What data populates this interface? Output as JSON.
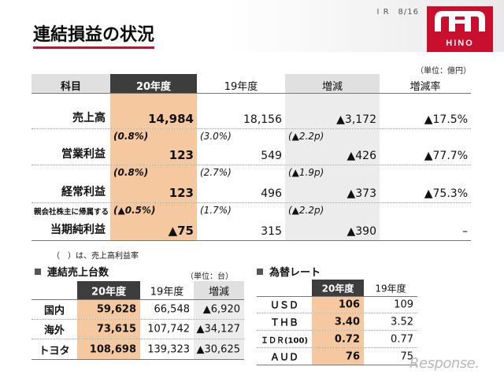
{
  "header": {
    "page_info": "I R　8/16",
    "title": "連結損益の状況",
    "logo_text": "HINO"
  },
  "main_table": {
    "unit": "（単位：億円）",
    "columns": [
      "科目",
      "20年度",
      "19年度",
      "増減",
      "増減率"
    ],
    "rows": [
      {
        "label": "売上高",
        "sublabel": "",
        "r20": "",
        "v20": "14,984",
        "r19": "",
        "v19": "18,156",
        "rdiff": "",
        "diff": "▲3,172",
        "rate": "▲17.5%"
      },
      {
        "label": "営業利益",
        "sublabel": "",
        "r20": "(0.8%)",
        "v20": "123",
        "r19": "(3.0%)",
        "v19": "549",
        "rdiff": "(▲2.2p)",
        "diff": "▲426",
        "rate": "▲77.7%"
      },
      {
        "label": "経常利益",
        "sublabel": "",
        "r20": "(0.8%)",
        "v20": "123",
        "r19": "(2.7%)",
        "v19": "496",
        "rdiff": "(▲1.9p)",
        "diff": "▲373",
        "rate": "▲75.3%"
      },
      {
        "label": "当期純利益",
        "sublabel": "親会社株主に帰属する",
        "r20": "(▲0.5%)",
        "v20": "▲75",
        "r19": "(1.7%)",
        "v19": "315",
        "rdiff": "(▲2.2p)",
        "diff": "▲390",
        "rate": "–"
      }
    ],
    "note": "（　）は、売上高利益率"
  },
  "units_table": {
    "title": "連結売上台数",
    "unit": "（単位：台）",
    "columns": [
      "",
      "20年度",
      "19年度",
      "増減"
    ],
    "rows": [
      {
        "label": "国内",
        "v20": "59,628",
        "v19": "66,548",
        "diff": "▲6,920"
      },
      {
        "label": "海外",
        "v20": "73,615",
        "v19": "107,742",
        "diff": "▲34,127"
      },
      {
        "label": "トヨタ",
        "v20": "108,698",
        "v19": "139,323",
        "diff": "▲30,625"
      }
    ]
  },
  "fx_table": {
    "title": "為替レート",
    "columns": [
      "",
      "20年度",
      "19年度"
    ],
    "rows": [
      {
        "label": "ＵＳＤ",
        "v20": "106",
        "v19": "109"
      },
      {
        "label": "ＴＨＢ",
        "v20": "3.40",
        "v19": "3.52"
      },
      {
        "label": "ＩＤＲ(100)",
        "v20": "0.72",
        "v19": "0.77"
      },
      {
        "label": "ＡＵＤ",
        "v20": "76",
        "v19": "75"
      }
    ]
  },
  "watermark": "Response.",
  "colors": {
    "brand": "#c8102e",
    "highlight": "#f5c8a0",
    "header_dark": "#3d3d3d"
  }
}
